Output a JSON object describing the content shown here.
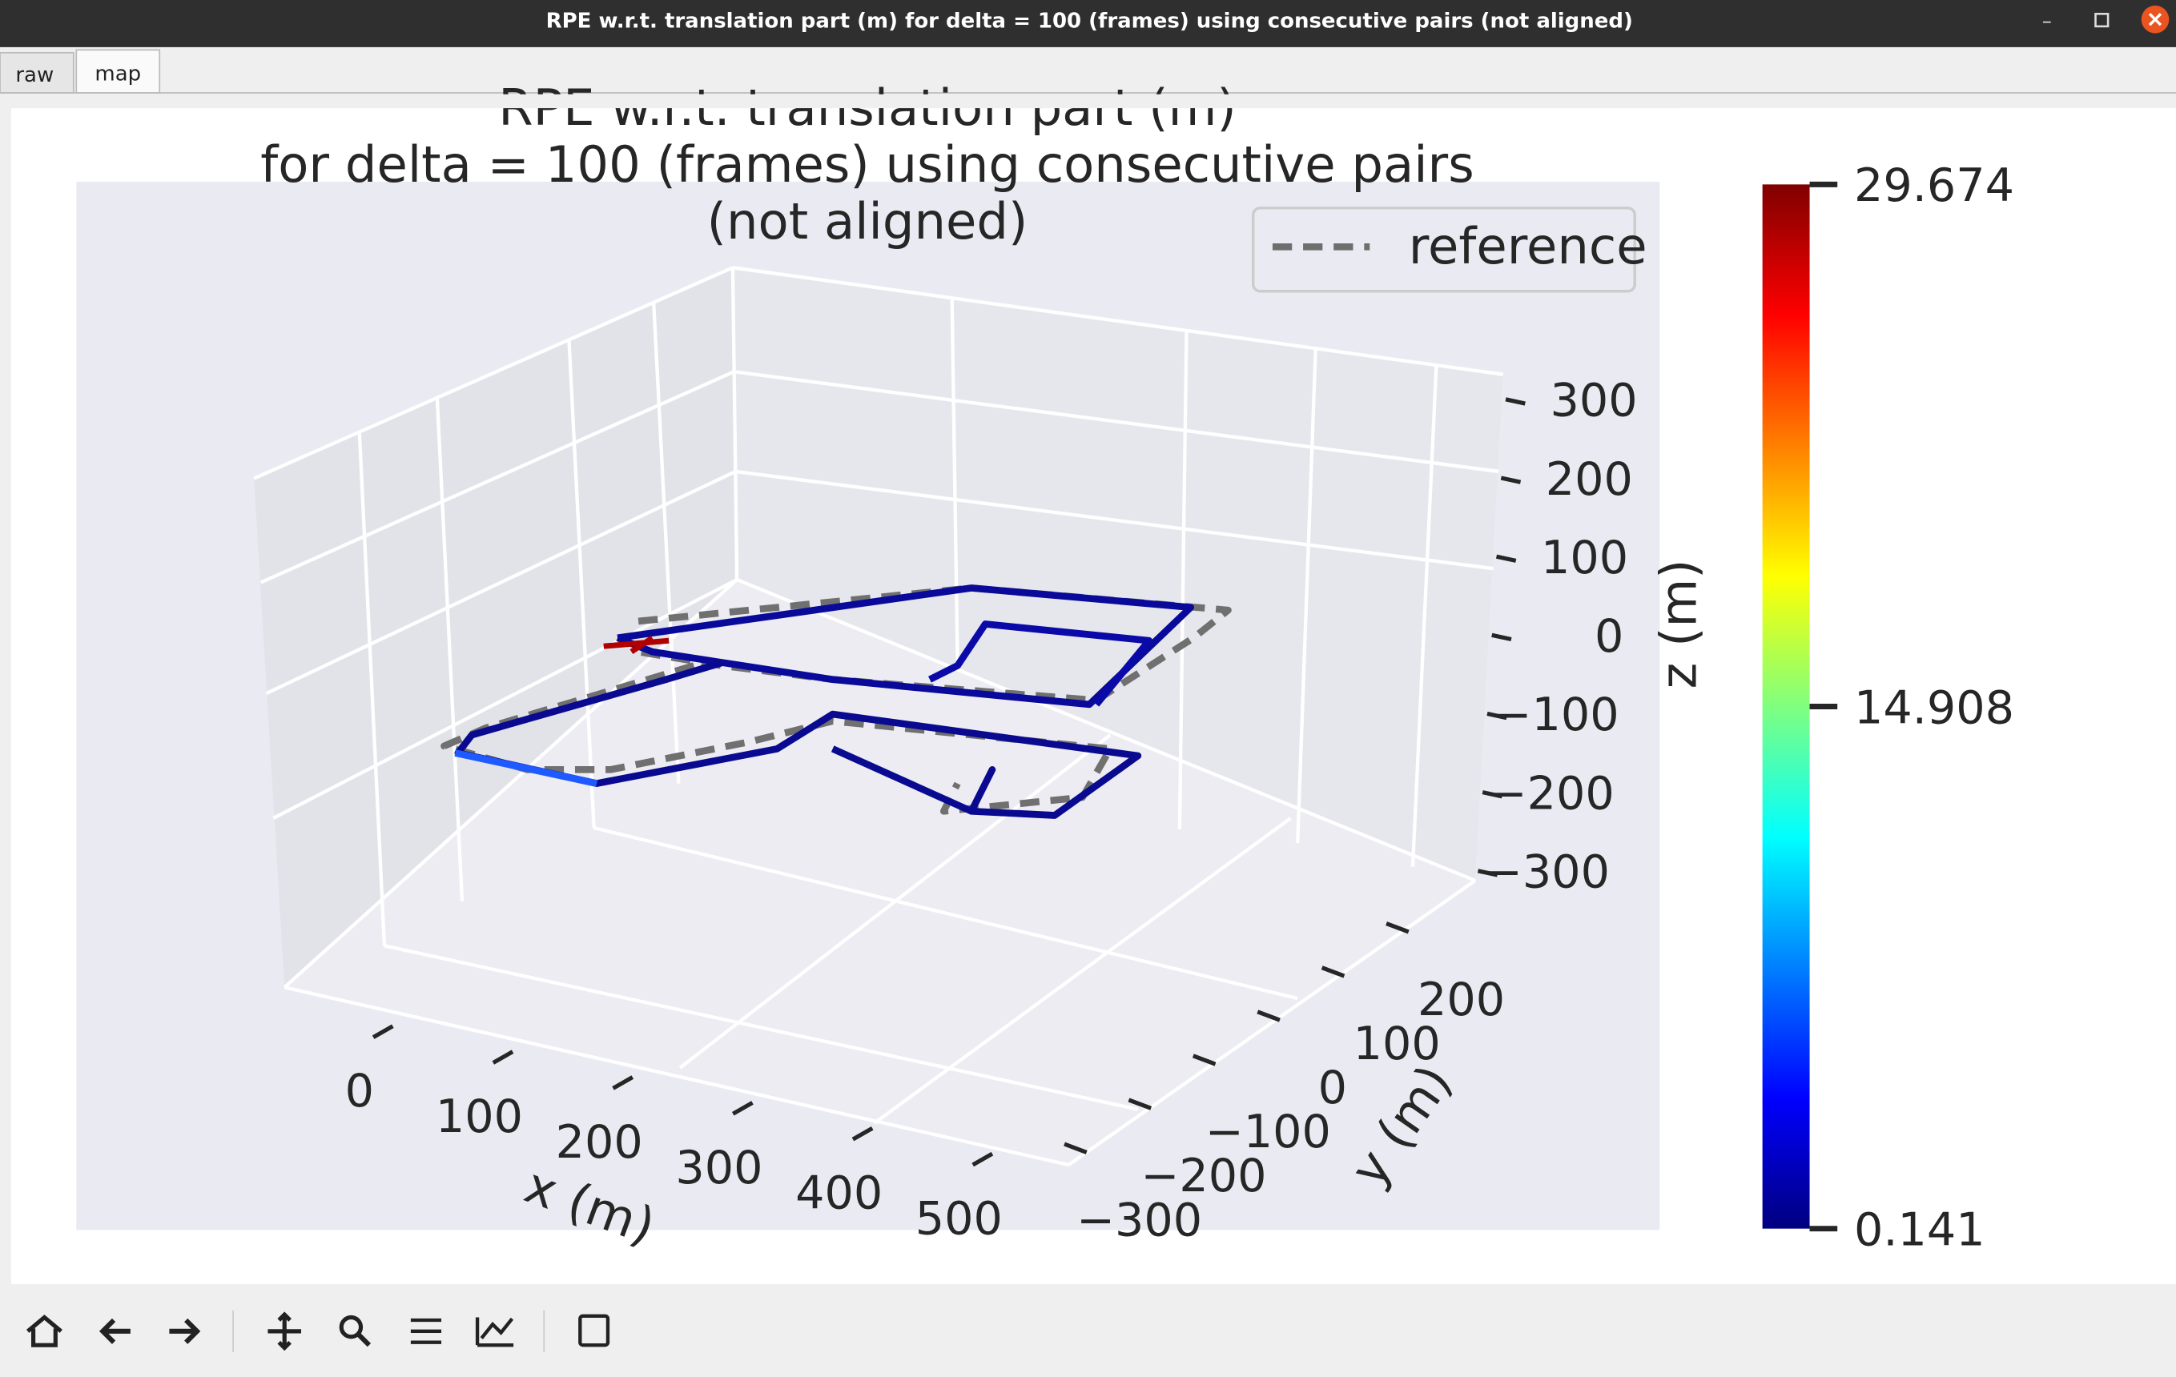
{
  "window": {
    "title": "RPE w.r.t. translation part (m) for delta = 100 (frames) using consecutive pairs (not aligned)"
  },
  "tabs": [
    "raw",
    "map"
  ],
  "chart_data": {
    "type": "line3d",
    "title_lines": [
      "RPE w.r.t. translation part (m)",
      "for delta = 100 (frames) using consecutive pairs",
      "(not aligned)"
    ],
    "legend_entries": [
      "reference"
    ],
    "reference_color": "#6e6e6e",
    "x_label": "x (m)",
    "y_label": "y (m)",
    "z_label": "z (m)",
    "xticks": [
      0,
      100,
      200,
      300,
      400,
      500
    ],
    "yticks": [
      {
        "value": -300,
        "label": "−300"
      },
      {
        "value": -200,
        "label": "−200"
      },
      {
        "value": -100,
        "label": "−100"
      },
      0,
      100,
      200
    ],
    "zticks": [
      {
        "value": -300,
        "label": "−300"
      },
      {
        "value": -200,
        "label": "−200"
      },
      {
        "value": -100,
        "label": "−100"
      },
      0,
      100,
      200,
      300
    ],
    "colorbar": {
      "colormap": "jet",
      "lim": [
        0.141,
        29.674
      ],
      "ticks": [
        0.141,
        14.908,
        29.674
      ]
    }
  }
}
